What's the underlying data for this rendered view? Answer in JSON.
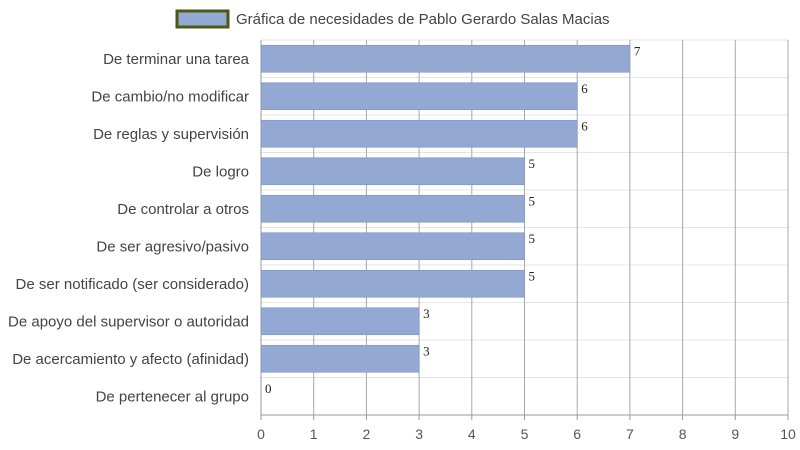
{
  "chart_data": {
    "type": "bar",
    "orientation": "horizontal",
    "title": "",
    "xlabel": "",
    "ylabel": "",
    "xlim": [
      0,
      10
    ],
    "x_ticks": [
      "0",
      "1",
      "2",
      "3",
      "4",
      "5",
      "6",
      "7",
      "8",
      "9",
      "10"
    ],
    "grid": true,
    "legend_position": "top",
    "categories": [
      "De terminar una tarea",
      "De cambio/no modificar",
      "De reglas y supervisión",
      "De logro",
      "De controlar a otros",
      "De ser agresivo/pasivo",
      "De ser notificado (ser considerado)",
      "De apoyo del supervisor o autoridad",
      "De acercamiento y afecto (afinidad)",
      "De pertenecer al grupo"
    ],
    "series": [
      {
        "name": "Gráfica de necesidades de Pablo Gerardo Salas Macias",
        "values": [
          7,
          6,
          6,
          5,
          5,
          5,
          5,
          3,
          3,
          0
        ],
        "color": "#94a8d4",
        "legend_border": "#4a5a14"
      }
    ],
    "data_labels": [
      "7",
      "6",
      "6",
      "5",
      "5",
      "5",
      "5",
      "3",
      "3",
      "0"
    ]
  }
}
